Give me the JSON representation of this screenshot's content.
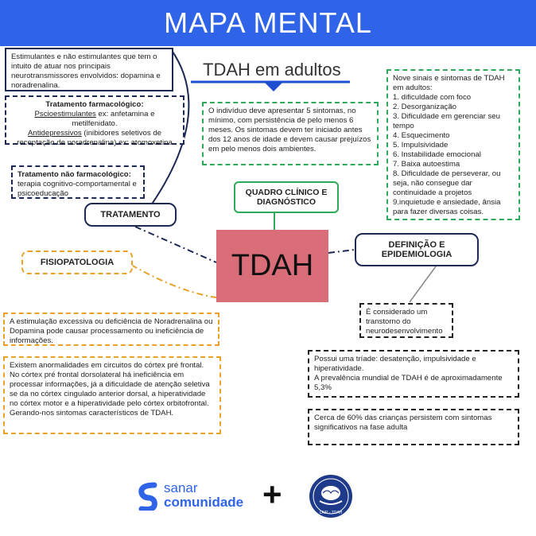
{
  "header": {
    "title": "MAPA MENTAL"
  },
  "subtitle": "TDAH em adultos",
  "center": "TDAH",
  "labels": {
    "tratamento": "TRATAMENTO",
    "fisiopatologia": "FISIOPATOLOGIA",
    "quadro": "QUADRO CLÍNICO E DIAGNÓSTICO",
    "definicao": "DEFINIÇÃO E EPIDEMIOLOGIA"
  },
  "boxes": {
    "estimulantes": "Estimulantes e não estimulantes que tem o intuito de atuar nos principais neurotransmissores envolvidos: dopamina e noradrenalina.",
    "farm_title": "Tratamento farmacológico:",
    "farm_psico": "Pscioestimulantes",
    "farm_psico_rest": " ex: anfetamina e metilfenidato.",
    "farm_anti": "Antidepressivos",
    "farm_anti_rest": " (inibidores seletivos de receptação de noradrenalina) ex: atomoxetina",
    "nao_farm_title": "Tratamento não farmacológico:",
    "nao_farm_text": "terapia cognitivo-comportamental e psicoeducação",
    "quadro_text": "O indivíduo deve apresentar 5 sintomas, no mínimo, com persistência de pelo menos 6 meses. Os sintomas devem ter iniciado antes dos 12 anos de idade e devem causar prejuízos em pelo menos dois ambientes.",
    "sinais_title": "Nove sinais e sintomas de TDAH em adultos:",
    "sinais": [
      "1. dificuldade com foco",
      "2. Desorganização",
      "3. Dificuldade em gerenciar seu tempo",
      "4. Esquecimento",
      "5. Impulsividade",
      "6. Instabilidade emocional",
      "7. Baixa autoestima",
      "8. Dificuldade de perseverar, ou seja, não consegue dar continuidade a projetos",
      "9.inquietude e ansiedade, ânsia para fazer diversas coisas."
    ],
    "fisio1": "A estimulação excessiva ou deficiência de Noradrenalina ou Dopamina pode causar processamento ou ineficiência de informações.",
    "fisio2": "Existem anormalidades em circuitos do córtex pré frontal. No córtex pré frontal dorsolateral há ineficiência em processar informações, já a dificuldade de atenção seletiva se da no córtex cingulado anterior dorsal, a hiperatividade no córtex motor e a hiperatividade pelo córtex orbitofrontal. Gerando-nos sintomas característicos de TDAH.",
    "def1": "É considerado um transtorno do neurodesenvolvimento",
    "def2a": "Possui uma tríade: desatenção, impulsividade e hiperatividade.",
    "def2b": "A prevalência mundial de TDAH é de aproximadamente 5,3%",
    "def3": "Cerca de 60% das crianças persistem com sintomas significativos na fase adulta"
  },
  "footer": {
    "sanar_line1": "sanar",
    "sanar_line2": "comunidade",
    "plus": "+",
    "seal_text": "LAIP - TDAH"
  },
  "colors": {
    "banner": "#2f64e8",
    "center": "#d96e78",
    "navy": "#1e2a55",
    "green": "#2eaa5a",
    "orange": "#e8a22a"
  }
}
